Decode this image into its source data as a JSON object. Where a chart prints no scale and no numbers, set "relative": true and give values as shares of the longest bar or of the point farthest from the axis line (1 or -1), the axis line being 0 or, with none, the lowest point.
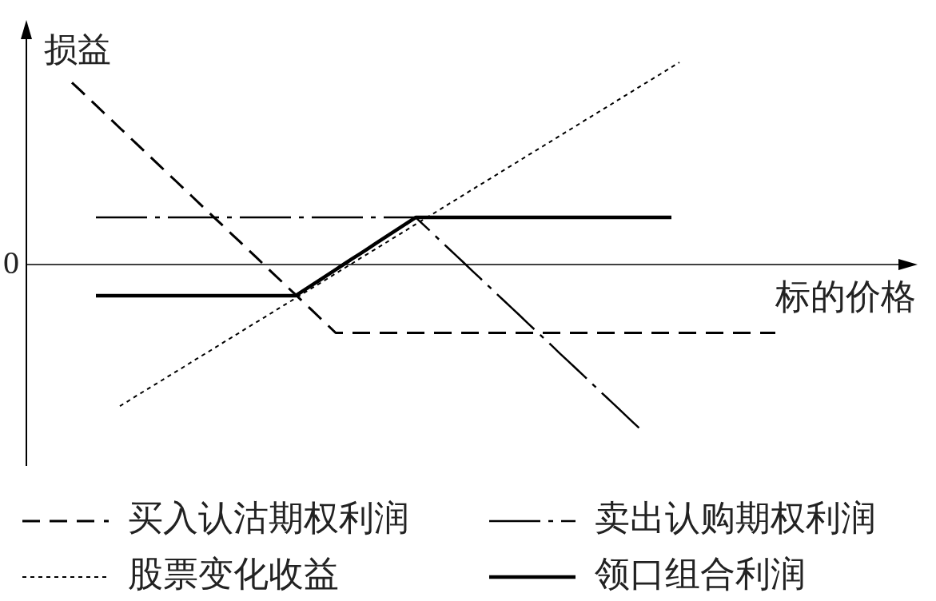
{
  "chart_data": {
    "type": "line",
    "relative": true,
    "xlabel": "标的价格",
    "ylabel": "损益",
    "legend": "bottom",
    "annotations": [
      "0"
    ],
    "categories": [
      null,
      null,
      null,
      null,
      null,
      null,
      null,
      null,
      null,
      null,
      null,
      null,
      null,
      null,
      null,
      null,
      null,
      null,
      null,
      null,
      null,
      null,
      null,
      null,
      null,
      null,
      null,
      null,
      null,
      null,
      null,
      null,
      null,
      null,
      null,
      null,
      null,
      null,
      null,
      null,
      null,
      null,
      null,
      null,
      null,
      null,
      null,
      null,
      null,
      null,
      null,
      null,
      null,
      null,
      null,
      null,
      null,
      null,
      null,
      null,
      null,
      null,
      null,
      null,
      null,
      null,
      null,
      null,
      null,
      null,
      null,
      null,
      null,
      null,
      null,
      null,
      null,
      null,
      null,
      null,
      null,
      null,
      null,
      null,
      null,
      null,
      null,
      null,
      null
    ],
    "series": [
      {
        "name": "买入认沽期权利润",
        "color": "#000000",
        "line_style": "dashed",
        "values": [
          0.9,
          0.863,
          0.825,
          0.788,
          0.75,
          0.713,
          0.675,
          0.638,
          0.6,
          0.563,
          0.525,
          0.488,
          0.45,
          0.413,
          0.375,
          0.338,
          0.3,
          0.263,
          0.225,
          0.188,
          0.15,
          0.113,
          0.075,
          0.038,
          0,
          -0.038,
          -0.075,
          -0.113,
          -0.15,
          -0.188,
          -0.225,
          -0.263,
          -0.3,
          -0.338,
          -0.338,
          -0.338,
          -0.338,
          -0.338,
          -0.338,
          -0.338,
          -0.338,
          -0.338,
          -0.338,
          -0.338,
          -0.338,
          -0.338,
          -0.338,
          -0.338,
          -0.338,
          -0.338,
          -0.338,
          -0.338,
          -0.338,
          -0.338,
          -0.338,
          -0.338,
          -0.338,
          -0.338,
          -0.338,
          -0.338,
          -0.338,
          -0.338,
          -0.338,
          -0.338,
          -0.338,
          -0.338,
          -0.338,
          -0.338,
          -0.338,
          -0.338,
          -0.338,
          -0.338,
          -0.338,
          -0.338,
          -0.338,
          -0.338,
          -0.338,
          -0.338,
          -0.338,
          -0.338,
          -0.338,
          -0.338,
          -0.338,
          -0.338,
          -0.338,
          -0.338,
          -0.338,
          -0.338,
          -0.338
        ]
      },
      {
        "name": "卖出认购期权利润",
        "color": "#000000",
        "line_style": "dashdot",
        "values": [
          null,
          null,
          null,
          0.233,
          0.233,
          0.233,
          0.233,
          0.233,
          0.233,
          0.233,
          0.233,
          0.233,
          0.233,
          0.233,
          0.233,
          0.233,
          0.233,
          0.233,
          0.233,
          0.233,
          0.233,
          0.233,
          0.233,
          0.233,
          0.233,
          0.233,
          0.233,
          0.233,
          0.233,
          0.233,
          0.233,
          0.233,
          0.233,
          0.233,
          0.233,
          0.233,
          0.233,
          0.233,
          0.233,
          0.233,
          0.233,
          0.233,
          0.233,
          0.233,
          0.196,
          0.159,
          0.121,
          0.084,
          0.047,
          0.01,
          -0.028,
          -0.065,
          -0.102,
          -0.14,
          -0.177,
          -0.214,
          -0.251,
          -0.289,
          -0.326,
          -0.363,
          -0.4,
          -0.438,
          -0.475,
          -0.512,
          -0.549,
          -0.587,
          -0.624,
          -0.661,
          -0.698,
          -0.736,
          -0.773,
          -0.81,
          null,
          null,
          null,
          null,
          null,
          null,
          null,
          null,
          null,
          null,
          null,
          null,
          null,
          null,
          null,
          null,
          null
        ]
      },
      {
        "name": "股票变化收益",
        "color": "#000000",
        "line_style": "dotted",
        "values": [
          null,
          null,
          null,
          null,
          null,
          null,
          -0.7,
          -0.676,
          -0.651,
          -0.627,
          -0.603,
          -0.579,
          -0.554,
          -0.53,
          -0.506,
          -0.481,
          -0.457,
          -0.433,
          -0.409,
          -0.384,
          -0.36,
          -0.336,
          -0.311,
          -0.287,
          -0.263,
          -0.239,
          -0.214,
          -0.19,
          -0.166,
          -0.141,
          -0.117,
          -0.093,
          -0.069,
          -0.044,
          -0.02,
          0.004,
          0.029,
          0.053,
          0.077,
          0.101,
          0.126,
          0.15,
          0.174,
          0.199,
          0.223,
          0.247,
          0.271,
          0.296,
          0.32,
          0.344,
          0.369,
          0.393,
          0.417,
          0.441,
          0.466,
          0.49,
          0.514,
          0.539,
          0.563,
          0.587,
          0.611,
          0.636,
          0.66,
          0.684,
          0.709,
          0.733,
          0.757,
          0.781,
          0.806,
          0.83,
          0.854,
          0.879,
          0.903,
          0.927,
          0.951,
          0.976,
          1,
          null,
          null,
          null,
          null,
          null,
          null,
          null,
          null,
          null,
          null,
          null,
          null
        ]
      },
      {
        "name": "领口组合利润",
        "color": "#000000",
        "line_style": "solid",
        "values": [
          null,
          null,
          null,
          -0.154,
          -0.154,
          -0.154,
          -0.154,
          -0.154,
          -0.154,
          -0.154,
          -0.154,
          -0.154,
          -0.154,
          -0.154,
          -0.154,
          -0.154,
          -0.154,
          -0.154,
          -0.154,
          -0.154,
          -0.154,
          -0.154,
          -0.154,
          -0.154,
          -0.154,
          -0.154,
          -0.154,
          -0.154,
          -0.154,
          -0.128,
          -0.102,
          -0.077,
          -0.051,
          -0.025,
          0.001,
          0.027,
          0.052,
          0.078,
          0.104,
          0.13,
          0.156,
          0.181,
          0.207,
          0.233,
          0.233,
          0.233,
          0.233,
          0.233,
          0.233,
          0.233,
          0.233,
          0.233,
          0.233,
          0.233,
          0.233,
          0.233,
          0.233,
          0.233,
          0.233,
          0.233,
          0.233,
          0.233,
          0.233,
          0.233,
          0.233,
          0.233,
          0.233,
          0.233,
          0.233,
          0.233,
          0.233,
          0.233,
          0.233,
          0.233,
          0.233,
          0.233,
          null,
          null,
          null,
          null,
          null,
          null,
          null,
          null,
          null,
          null,
          null,
          null,
          null
        ]
      }
    ]
  }
}
